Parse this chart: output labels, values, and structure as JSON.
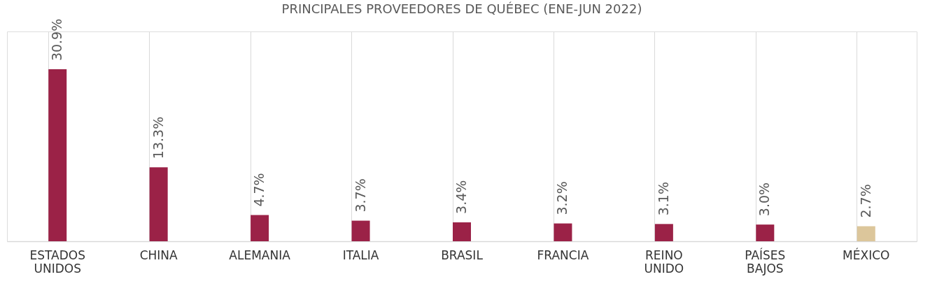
{
  "chart_data": {
    "type": "bar",
    "title": "PRINCIPALES PROVEEDORES DE QUÉBEC (ENE-JUN 2022)",
    "categories": [
      "ESTADOS UNIDOS",
      "CHINA",
      "ALEMANIA",
      "ITALIA",
      "BRASIL",
      "FRANCIA",
      "REINO UNIDO",
      "PAÍSES BAJOS",
      "MÉXICO"
    ],
    "values": [
      30.9,
      13.3,
      4.7,
      3.7,
      3.4,
      3.2,
      3.1,
      3.0,
      2.7
    ],
    "value_labels": [
      "30.9%",
      "13.3%",
      "4.7%",
      "3.7%",
      "3.4%",
      "3.2%",
      "3.1%",
      "3.0%",
      "2.7%"
    ],
    "colors": [
      "#9b2247",
      "#9b2247",
      "#9b2247",
      "#9b2247",
      "#9b2247",
      "#9b2247",
      "#9b2247",
      "#9b2247",
      "#dcc69b"
    ],
    "grid": "x"
  }
}
